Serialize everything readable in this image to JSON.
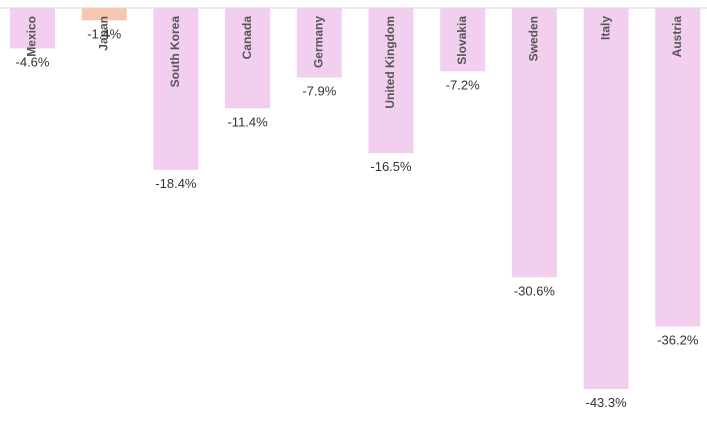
{
  "chart_data": {
    "type": "bar",
    "orientation": "vertical",
    "categories": [
      "Mexico",
      "Japan",
      "South Korea",
      "Canada",
      "Germany",
      "United Kingdom",
      "Slovakia",
      "Sweden",
      "Italy",
      "Austria"
    ],
    "values": [
      -4.6,
      -1.4,
      -18.4,
      -11.4,
      -7.9,
      -16.5,
      -7.2,
      -30.6,
      -43.3,
      -36.2
    ],
    "value_labels": [
      "-4.6%",
      "-1.4%",
      "-18.4%",
      "-11.4%",
      "-7.9%",
      "-16.5%",
      "-7.2%",
      "-30.6%",
      "-43.3%",
      "-36.2%"
    ],
    "colors": [
      "#f2cfee",
      "#f8c6ae",
      "#f2cfee",
      "#f2cfee",
      "#f2cfee",
      "#f2cfee",
      "#f2cfee",
      "#f2cfee",
      "#f2cfee",
      "#f2cfee"
    ],
    "baseline_color": "#d9d9d9",
    "title": "",
    "xlabel": "",
    "ylabel": "",
    "ylim": [
      -45,
      0
    ],
    "grid": false,
    "legend": "none"
  }
}
